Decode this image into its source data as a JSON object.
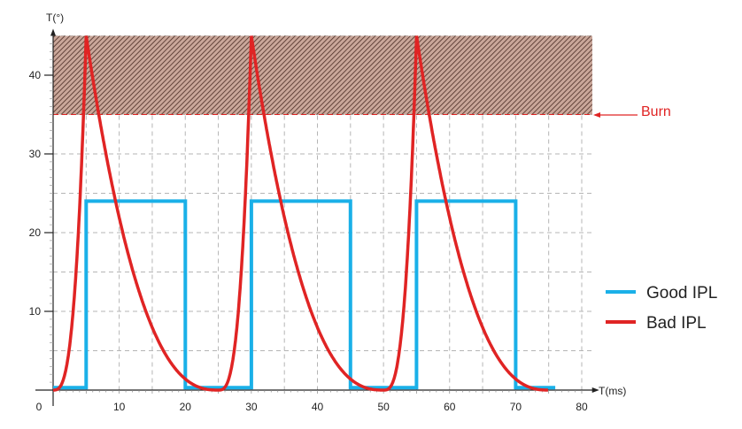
{
  "chart_data": {
    "type": "line",
    "xlabel": "T(ms)",
    "ylabel": "T(°)",
    "xlim": [
      0,
      80
    ],
    "ylim": [
      0,
      45
    ],
    "xticks": [
      "0",
      "10",
      "20",
      "30",
      "40",
      "50",
      "60",
      "70",
      "80"
    ],
    "yticks": [
      "10",
      "20",
      "30",
      "40"
    ],
    "grid": true,
    "legend_placement": "bottom-right",
    "annotation": {
      "label": "Burn",
      "threshold": 35,
      "region": [
        35,
        45
      ]
    },
    "series": [
      {
        "name": "Good IPL",
        "color": "#1ab0e8",
        "x": [
          0,
          5,
          5,
          20,
          20,
          30,
          30,
          45,
          45,
          55,
          55,
          70,
          70,
          76
        ],
        "y": [
          0.3,
          0.3,
          24,
          24,
          0.3,
          0.3,
          24,
          24,
          0.3,
          0.3,
          24,
          24,
          0.3,
          0.3
        ]
      },
      {
        "name": "Bad IPL",
        "color": "#e02424",
        "pulses": [
          0,
          25,
          50
        ],
        "peak": 45,
        "rise_ms": 5,
        "decay_ms": 20,
        "x_end": 75
      }
    ]
  }
}
